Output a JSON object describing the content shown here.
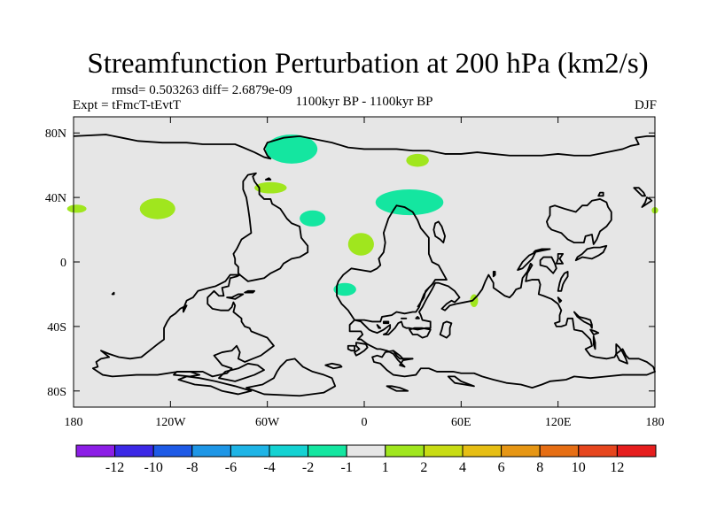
{
  "chart_data": {
    "type": "map-contour",
    "title": "Streamfunction Perturbation at 200 hPa (km2/s)",
    "stats": "rmsd= 0.503263 diff= 2.6879e-09",
    "experiment": "Expt = tFmcT-tEvtT",
    "period": "1100kyr BP - 1100kyr BP",
    "season": "DJF",
    "x_axis": {
      "range": [
        -180,
        180
      ],
      "ticks": [
        {
          "v": -180,
          "label": "180"
        },
        {
          "v": -120,
          "label": "120W"
        },
        {
          "v": -60,
          "label": "60W"
        },
        {
          "v": 0,
          "label": "0"
        },
        {
          "v": 60,
          "label": "60E"
        },
        {
          "v": 120,
          "label": "120E"
        },
        {
          "v": 180,
          "label": "180"
        }
      ]
    },
    "y_axis": {
      "range": [
        -90,
        90
      ],
      "ticks": [
        {
          "v": 80,
          "label": "80N"
        },
        {
          "v": 40,
          "label": "40N"
        },
        {
          "v": 0,
          "label": "0"
        },
        {
          "v": -40,
          "label": "40S"
        },
        {
          "v": -80,
          "label": "80S"
        }
      ]
    },
    "background_color": "#e6e6e6",
    "colorbar": {
      "colors": [
        "#8c1ee6",
        "#3c28e6",
        "#1e5ae6",
        "#1e96e6",
        "#1eb4e6",
        "#14d2d2",
        "#14e6a0",
        "#e6e6e6",
        "#a0e61e",
        "#c8dc14",
        "#e6be14",
        "#e69614",
        "#e66e14",
        "#e6461e",
        "#e61e1e"
      ],
      "labels": [
        "-12",
        "-10",
        "-8",
        "-6",
        "-4",
        "-2",
        "-1",
        "1",
        "2",
        "4",
        "6",
        "8",
        "10",
        "12"
      ]
    },
    "anomalies": [
      {
        "name": "greenland-low",
        "lon": -45,
        "lat": 70,
        "rlon": 16,
        "rlat": 9,
        "level": "-2",
        "color": "#14e6a0"
      },
      {
        "name": "mediterranean-low",
        "lon": 28,
        "lat": 37,
        "rlon": 21,
        "rlat": 8,
        "level": "-2",
        "color": "#14e6a0"
      },
      {
        "name": "central-atlantic-low",
        "lon": -32,
        "lat": 27,
        "rlon": 8,
        "rlat": 5,
        "level": "-2",
        "color": "#14e6a0"
      },
      {
        "name": "south-atlantic-low",
        "lon": -12,
        "lat": -17,
        "rlon": 7,
        "rlat": 4,
        "level": "-2",
        "color": "#14e6a0"
      },
      {
        "name": "north-atlantic-high",
        "lon": -58,
        "lat": 46,
        "rlon": 10,
        "rlat": 3.5,
        "level": "2",
        "color": "#a0e61e"
      },
      {
        "name": "pacific-mexico-high",
        "lon": -128,
        "lat": 33,
        "rlon": 11,
        "rlat": 6.5,
        "level": "2",
        "color": "#a0e61e"
      },
      {
        "name": "west-africa-high",
        "lon": -2,
        "lat": 11,
        "rlon": 8,
        "rlat": 7,
        "level": "2",
        "color": "#a0e61e"
      },
      {
        "name": "russia-high",
        "lon": 33,
        "lat": 63,
        "rlon": 7,
        "rlat": 4,
        "level": "2",
        "color": "#a0e61e"
      },
      {
        "name": "pacific-west-edge-high",
        "lon": -178,
        "lat": 33,
        "rlon": 6,
        "rlat": 2.5,
        "level": "2",
        "color": "#a0e61e"
      },
      {
        "name": "pacific-east-edge-high",
        "lon": 180,
        "lat": 32,
        "rlon": 2,
        "rlat": 2,
        "level": "2",
        "color": "#a0e61e"
      },
      {
        "name": "madagascar-east-high",
        "lon": 68,
        "lat": -24,
        "rlon": 2.5,
        "rlat": 4,
        "level": "2",
        "color": "#a0e61e"
      }
    ]
  }
}
